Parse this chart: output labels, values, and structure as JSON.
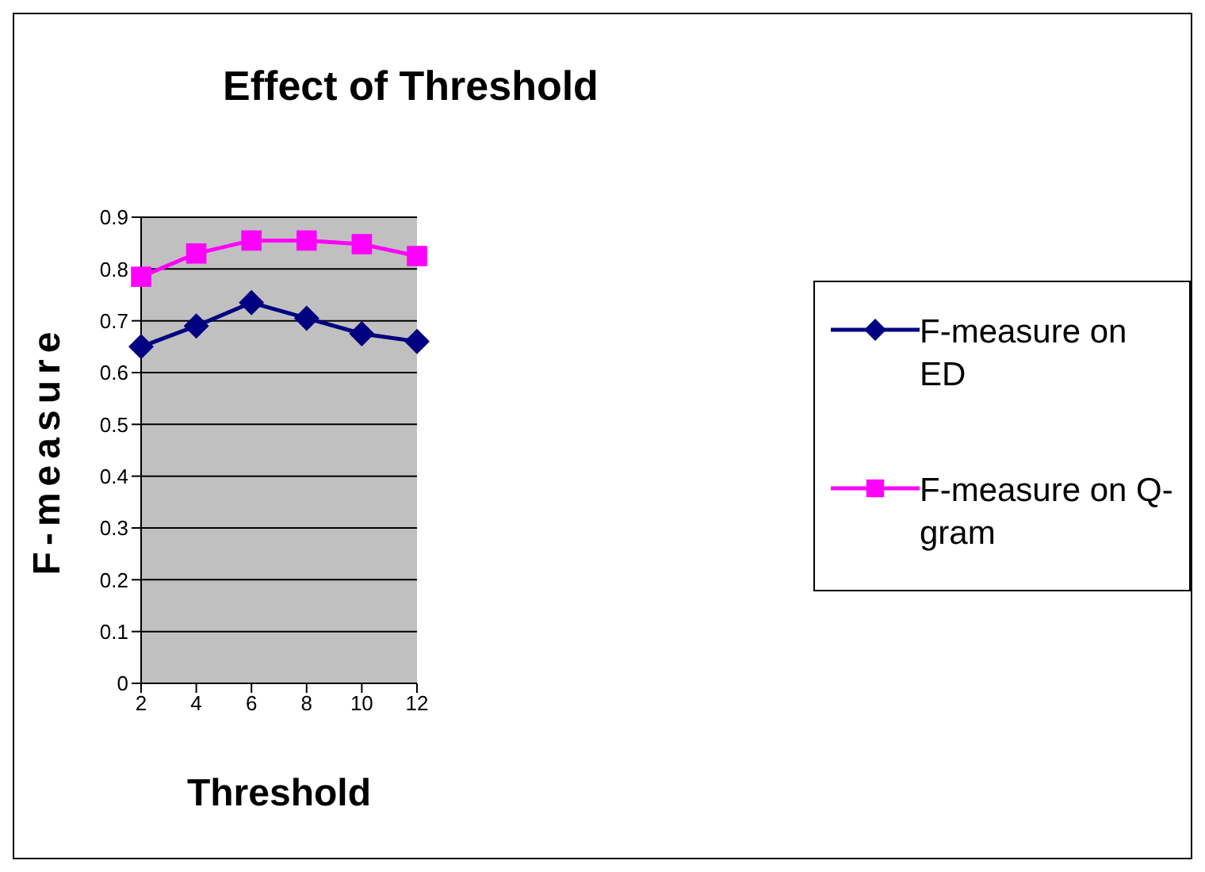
{
  "chart_data": {
    "type": "line",
    "title": "Effect of Threshold",
    "xlabel": "Threshold",
    "ylabel": "F-measure",
    "categories": [
      "2",
      "4",
      "6",
      "8",
      "10",
      "12"
    ],
    "series": [
      {
        "name": "F-measure on ED",
        "color": "#000080",
        "marker": "diamond",
        "values": [
          0.65,
          0.69,
          0.735,
          0.705,
          0.675,
          0.66
        ]
      },
      {
        "name": "F-measure on Q-gram",
        "color": "#ff00ff",
        "marker": "square",
        "values": [
          0.785,
          0.83,
          0.855,
          0.855,
          0.848,
          0.825
        ]
      }
    ],
    "ylim": [
      0,
      0.9
    ],
    "yticks": [
      0,
      0.1,
      0.2,
      0.3,
      0.4,
      0.5,
      0.6,
      0.7,
      0.8,
      0.9
    ],
    "grid": "y",
    "legend": "right"
  }
}
